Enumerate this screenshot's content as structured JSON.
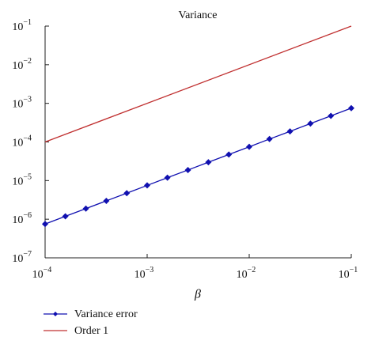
{
  "chart_data": {
    "type": "line",
    "title": "Variance",
    "x_label": "β",
    "xscale": "log",
    "yscale": "log",
    "xlim": [
      0.0001,
      0.1
    ],
    "ylim": [
      1e-07,
      0.1
    ],
    "xticks": [
      {
        "value": 0.0001,
        "label": "10−4"
      },
      {
        "value": 0.001,
        "label": "10−3"
      },
      {
        "value": 0.01,
        "label": "10−2"
      },
      {
        "value": 0.1,
        "label": "10−1"
      }
    ],
    "yticks": [
      {
        "value": 1e-07,
        "label": "10−7"
      },
      {
        "value": 1e-06,
        "label": "10−6"
      },
      {
        "value": 1e-05,
        "label": "10−5"
      },
      {
        "value": 0.0001,
        "label": "10−4"
      },
      {
        "value": 0.001,
        "label": "10−3"
      },
      {
        "value": 0.01,
        "label": "10−2"
      },
      {
        "value": 0.1,
        "label": "10−1"
      }
    ],
    "legend": "bottom-left",
    "series": [
      {
        "name": "Variance error",
        "color": "#1010b0",
        "marker": "diamond",
        "x": [
          0.0001,
          0.000158,
          0.000251,
          0.000398,
          0.000631,
          0.001,
          0.00158,
          0.00251,
          0.00398,
          0.00631,
          0.01,
          0.0158,
          0.0251,
          0.0398,
          0.0631,
          0.1
        ],
        "values": [
          7.5e-07,
          1.19e-06,
          1.88e-06,
          2.99e-06,
          4.73e-06,
          7.5e-06,
          1.19e-05,
          1.88e-05,
          2.99e-05,
          4.73e-05,
          7.5e-05,
          0.000119,
          0.000188,
          0.000299,
          0.000473,
          0.00075
        ]
      },
      {
        "name": "Order 1",
        "color": "#c03030",
        "marker": null,
        "x": [
          0.0001,
          0.1
        ],
        "values": [
          0.0001,
          0.1
        ]
      }
    ]
  }
}
